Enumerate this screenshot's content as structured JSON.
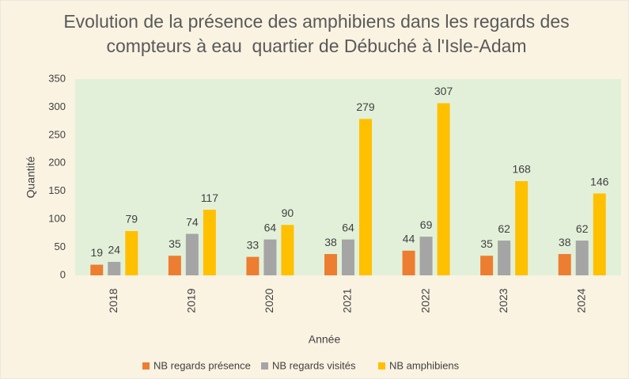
{
  "chart_data": {
    "type": "bar",
    "title": "Evolution de la présence des amphibiens dans les regards des compteurs à eau  quartier de Débuché à l'Isle-Adam",
    "x_label": "Année",
    "y_label": "Quantité",
    "categories": [
      "2018",
      "2019",
      "2020",
      "2021",
      "2022",
      "2023",
      "2024"
    ],
    "series": [
      {
        "name": "NB regards présence",
        "color": "#ed7d31",
        "values": [
          19,
          35,
          33,
          38,
          44,
          35,
          38
        ]
      },
      {
        "name": "NB regards visités",
        "color": "#a5a5a5",
        "values": [
          24,
          74,
          64,
          64,
          69,
          62,
          62
        ]
      },
      {
        "name": "NB amphibiens",
        "color": "#ffc000",
        "values": [
          79,
          117,
          90,
          279,
          307,
          168,
          146
        ]
      }
    ],
    "ylim": [
      0,
      350
    ],
    "yticks": [
      0,
      50,
      100,
      150,
      200,
      250,
      300,
      350
    ],
    "grid": false,
    "legend": "bottom"
  }
}
